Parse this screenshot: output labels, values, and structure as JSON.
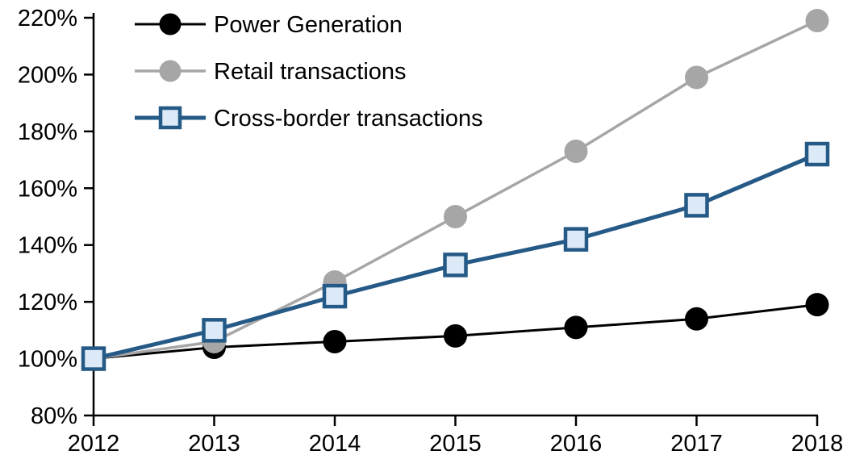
{
  "chart_data": {
    "type": "line",
    "categories": [
      "2012",
      "2013",
      "2014",
      "2015",
      "2016",
      "2017",
      "2018"
    ],
    "series": [
      {
        "name": "Power Generation",
        "values": [
          100,
          104,
          106,
          108,
          111,
          114,
          119
        ],
        "color": "#000000",
        "marker": "circle",
        "marker_fill": "#000000",
        "line_width": 3
      },
      {
        "name": "Retail transactions",
        "values": [
          100,
          106,
          127,
          150,
          173,
          199,
          219
        ],
        "color": "#A6A6A6",
        "marker": "circle",
        "marker_fill": "#A6A6A6",
        "line_width": 3.5
      },
      {
        "name": "Cross-border transactions",
        "values": [
          100,
          110,
          122,
          133,
          142,
          154,
          172
        ],
        "color": "#255A87",
        "marker": "square",
        "marker_fill": "#DCE9F6",
        "line_width": 5
      }
    ],
    "ylim": [
      80,
      220
    ],
    "ytick_step": 20,
    "ytick_format": "percent",
    "grid": false,
    "legend_position": "top-left",
    "axis_color": "#000000",
    "text_color": "#000000"
  }
}
